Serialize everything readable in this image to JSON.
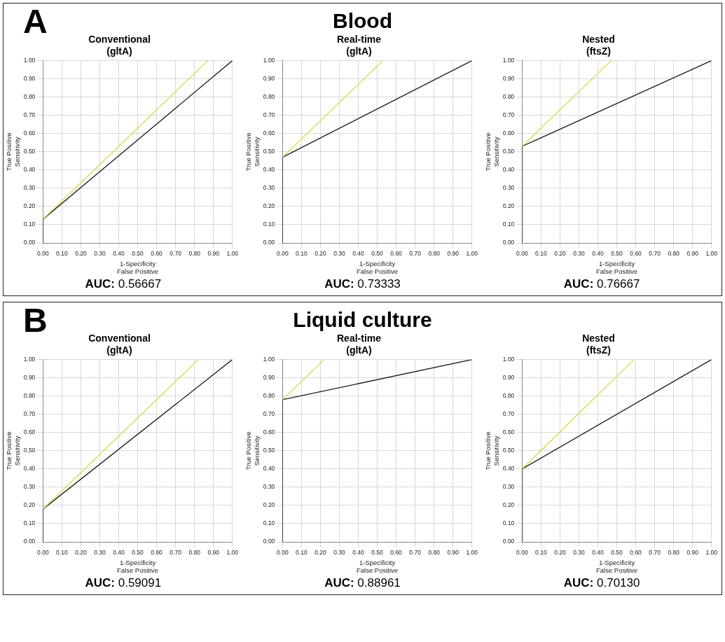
{
  "chart_data": [
    {
      "type": "line",
      "title": "Conventional\n(gltA)",
      "xlabel": "1-Specificity\nFalse Positive",
      "ylabel": "True Positive\nSensitivity",
      "annotations": [
        "A",
        "Blood",
        "AUC: 0.56667"
      ],
      "xlim": [
        0,
        1
      ],
      "ylim": [
        0,
        1
      ],
      "xticks": [
        {
          "value": 0,
          "label": "0.00"
        },
        {
          "value": 0.1,
          "label": "0.10"
        },
        {
          "value": 0.2,
          "label": "0.20"
        },
        {
          "value": 0.3,
          "label": "0.30"
        },
        {
          "value": 0.4,
          "label": "0.40"
        },
        {
          "value": 0.5,
          "label": "0.50"
        },
        {
          "value": 0.6,
          "label": "0.60"
        },
        {
          "value": 0.7,
          "label": "0.70"
        },
        {
          "value": 0.8,
          "label": "0.80"
        },
        {
          "value": 0.9,
          "label": "0.90"
        },
        {
          "value": 1,
          "label": "1.00"
        }
      ],
      "yticks": [
        {
          "value": 0,
          "label": "0.00"
        },
        {
          "value": 0.1,
          "label": "0.10"
        },
        {
          "value": 0.2,
          "label": "0.20"
        },
        {
          "value": 0.3,
          "label": "0.30"
        },
        {
          "value": 0.4,
          "label": "0.40"
        },
        {
          "value": 0.5,
          "label": "0.50"
        },
        {
          "value": 0.6,
          "label": "0.60"
        },
        {
          "value": 0.7,
          "label": "0.70"
        },
        {
          "value": 0.8,
          "label": "0.80"
        },
        {
          "value": 0.9,
          "label": "0.90"
        },
        {
          "value": 1,
          "label": "1.00"
        }
      ],
      "grid": true,
      "series": [
        {
          "color": "#d6d84c",
          "x": [
            0,
            0.87
          ],
          "values": [
            0.13,
            1
          ]
        },
        {
          "color": "#1a1a1a",
          "x": [
            0,
            0,
            1
          ],
          "values": [
            0,
            0.13,
            1
          ]
        }
      ]
    },
    {
      "type": "line",
      "title": "Real-time\n(gltA)",
      "xlabel": "1-Specificity\nFalse Positive",
      "ylabel": "True Positive\nSensitivity",
      "annotations": [
        "AUC: 0.73333"
      ],
      "xlim": [
        0,
        1
      ],
      "ylim": [
        0,
        1
      ],
      "xticks": [
        {
          "value": 0,
          "label": "0.00"
        },
        {
          "value": 0.1,
          "label": "0.10"
        },
        {
          "value": 0.2,
          "label": "0.20"
        },
        {
          "value": 0.3,
          "label": "0.30"
        },
        {
          "value": 0.4,
          "label": "0.40"
        },
        {
          "value": 0.5,
          "label": "0.50"
        },
        {
          "value": 0.6,
          "label": "0.60"
        },
        {
          "value": 0.7,
          "label": "0.70"
        },
        {
          "value": 0.8,
          "label": "0.80"
        },
        {
          "value": 0.9,
          "label": "0.90"
        },
        {
          "value": 1,
          "label": "1.00"
        }
      ],
      "yticks": [
        {
          "value": 0,
          "label": "0.00"
        },
        {
          "value": 0.1,
          "label": "0.10"
        },
        {
          "value": 0.2,
          "label": "0.20"
        },
        {
          "value": 0.3,
          "label": "0.30"
        },
        {
          "value": 0.4,
          "label": "0.40"
        },
        {
          "value": 0.5,
          "label": "0.50"
        },
        {
          "value": 0.6,
          "label": "0.60"
        },
        {
          "value": 0.7,
          "label": "0.70"
        },
        {
          "value": 0.8,
          "label": "0.80"
        },
        {
          "value": 0.9,
          "label": "0.90"
        },
        {
          "value": 1,
          "label": "1.00"
        }
      ],
      "grid": true,
      "series": [
        {
          "color": "#d6d84c",
          "x": [
            0,
            0.53
          ],
          "values": [
            0.47,
            1
          ]
        },
        {
          "color": "#1a1a1a",
          "x": [
            0,
            0,
            1
          ],
          "values": [
            0,
            0.47,
            1
          ]
        }
      ]
    },
    {
      "type": "line",
      "title": "Nested\n(ftsZ)",
      "xlabel": "1-Specificity\nFalse Positive",
      "ylabel": "True Positive\nSensitivity",
      "annotations": [
        "AUC: 0.76667"
      ],
      "xlim": [
        0,
        1
      ],
      "ylim": [
        0,
        1
      ],
      "xticks": [
        {
          "value": 0,
          "label": "0.00"
        },
        {
          "value": 0.1,
          "label": "0.10"
        },
        {
          "value": 0.2,
          "label": "0.20"
        },
        {
          "value": 0.3,
          "label": "0.30"
        },
        {
          "value": 0.4,
          "label": "0.40"
        },
        {
          "value": 0.5,
          "label": "0.50"
        },
        {
          "value": 0.6,
          "label": "0.60"
        },
        {
          "value": 0.7,
          "label": "0.70"
        },
        {
          "value": 0.8,
          "label": "0.80"
        },
        {
          "value": 0.9,
          "label": "0.90"
        },
        {
          "value": 1,
          "label": "1.00"
        }
      ],
      "yticks": [
        {
          "value": 0,
          "label": "0.00"
        },
        {
          "value": 0.1,
          "label": "0.10"
        },
        {
          "value": 0.2,
          "label": "0.20"
        },
        {
          "value": 0.3,
          "label": "0.30"
        },
        {
          "value": 0.4,
          "label": "0.40"
        },
        {
          "value": 0.5,
          "label": "0.50"
        },
        {
          "value": 0.6,
          "label": "0.60"
        },
        {
          "value": 0.7,
          "label": "0.70"
        },
        {
          "value": 0.8,
          "label": "0.80"
        },
        {
          "value": 0.9,
          "label": "0.90"
        },
        {
          "value": 1,
          "label": "1.00"
        }
      ],
      "grid": true,
      "series": [
        {
          "color": "#d6d84c",
          "x": [
            0,
            0.47
          ],
          "values": [
            0.53,
            1
          ]
        },
        {
          "color": "#1a1a1a",
          "x": [
            0,
            0,
            1
          ],
          "values": [
            0,
            0.53,
            1
          ]
        }
      ]
    },
    {
      "type": "line",
      "title": "Conventional\n(gltA)",
      "xlabel": "1-Specificity\nFalse Positive",
      "ylabel": "True Positive\nSensitivity",
      "annotations": [
        "B",
        "Liquid culture",
        "AUC: 0.59091"
      ],
      "xlim": [
        0,
        1
      ],
      "ylim": [
        0,
        1
      ],
      "xticks": [
        {
          "value": 0,
          "label": "0.00"
        },
        {
          "value": 0.1,
          "label": "0.10"
        },
        {
          "value": 0.2,
          "label": "0.20"
        },
        {
          "value": 0.3,
          "label": "0.30"
        },
        {
          "value": 0.4,
          "label": "0.40"
        },
        {
          "value": 0.5,
          "label": "0.50"
        },
        {
          "value": 0.6,
          "label": "0.60"
        },
        {
          "value": 0.7,
          "label": "0.70"
        },
        {
          "value": 0.8,
          "label": "0.80"
        },
        {
          "value": 0.9,
          "label": "0.90"
        },
        {
          "value": 1,
          "label": "1.00"
        }
      ],
      "yticks": [
        {
          "value": 0,
          "label": "0.00"
        },
        {
          "value": 0.1,
          "label": "0.10"
        },
        {
          "value": 0.2,
          "label": "0.20"
        },
        {
          "value": 0.3,
          "label": "0.30"
        },
        {
          "value": 0.4,
          "label": "0.40"
        },
        {
          "value": 0.5,
          "label": "0.50"
        },
        {
          "value": 0.6,
          "label": "0.60"
        },
        {
          "value": 0.7,
          "label": "0.70"
        },
        {
          "value": 0.8,
          "label": "0.80"
        },
        {
          "value": 0.9,
          "label": "0.90"
        },
        {
          "value": 1,
          "label": "1.00"
        }
      ],
      "grid": true,
      "series": [
        {
          "color": "#d6d84c",
          "x": [
            0,
            0.82
          ],
          "values": [
            0.18,
            1
          ]
        },
        {
          "color": "#1a1a1a",
          "x": [
            0,
            0,
            1
          ],
          "values": [
            0,
            0.18,
            1
          ]
        }
      ]
    },
    {
      "type": "line",
      "title": "Real-time\n(gltA)",
      "xlabel": "1-Specificity\nFalse Positive",
      "ylabel": "True Positive\nSensitivity",
      "annotations": [
        "AUC: 0.88961"
      ],
      "xlim": [
        0,
        1
      ],
      "ylim": [
        0,
        1
      ],
      "xticks": [
        {
          "value": 0,
          "label": "0.00"
        },
        {
          "value": 0.1,
          "label": "0.10"
        },
        {
          "value": 0.2,
          "label": "0.20"
        },
        {
          "value": 0.3,
          "label": "0.30"
        },
        {
          "value": 0.4,
          "label": "0.40"
        },
        {
          "value": 0.5,
          "label": "0.50"
        },
        {
          "value": 0.6,
          "label": "0.60"
        },
        {
          "value": 0.7,
          "label": "0.70"
        },
        {
          "value": 0.8,
          "label": "0.80"
        },
        {
          "value": 0.9,
          "label": "0.90"
        },
        {
          "value": 1,
          "label": "1.00"
        }
      ],
      "yticks": [
        {
          "value": 0,
          "label": "0.00"
        },
        {
          "value": 0.1,
          "label": "0.10"
        },
        {
          "value": 0.2,
          "label": "0.20"
        },
        {
          "value": 0.3,
          "label": "0.30"
        },
        {
          "value": 0.4,
          "label": "0.40"
        },
        {
          "value": 0.5,
          "label": "0.50"
        },
        {
          "value": 0.6,
          "label": "0.60"
        },
        {
          "value": 0.7,
          "label": "0.70"
        },
        {
          "value": 0.8,
          "label": "0.80"
        },
        {
          "value": 0.9,
          "label": "0.90"
        },
        {
          "value": 1,
          "label": "1.00"
        }
      ],
      "grid": true,
      "series": [
        {
          "color": "#d6d84c",
          "x": [
            0,
            0.22
          ],
          "values": [
            0.78,
            1
          ]
        },
        {
          "color": "#1a1a1a",
          "x": [
            0,
            0,
            1
          ],
          "values": [
            0,
            0.78,
            1
          ]
        }
      ]
    },
    {
      "type": "line",
      "title": "Nested\n(ftsZ)",
      "xlabel": "1-Specificity\nFalse Positive",
      "ylabel": "True Positive\nSensitivity",
      "annotations": [
        "AUC: 0.70130"
      ],
      "xlim": [
        0,
        1
      ],
      "ylim": [
        0,
        1
      ],
      "xticks": [
        {
          "value": 0,
          "label": "0.00"
        },
        {
          "value": 0.1,
          "label": "0.10"
        },
        {
          "value": 0.2,
          "label": "0.20"
        },
        {
          "value": 0.3,
          "label": "0.30"
        },
        {
          "value": 0.4,
          "label": "0.40"
        },
        {
          "value": 0.5,
          "label": "0.50"
        },
        {
          "value": 0.6,
          "label": "0.60"
        },
        {
          "value": 0.7,
          "label": "0.70"
        },
        {
          "value": 0.8,
          "label": "0.80"
        },
        {
          "value": 0.9,
          "label": "0.90"
        },
        {
          "value": 1,
          "label": "1.00"
        }
      ],
      "yticks": [
        {
          "value": 0,
          "label": "0.00"
        },
        {
          "value": 0.1,
          "label": "0.10"
        },
        {
          "value": 0.2,
          "label": "0.20"
        },
        {
          "value": 0.3,
          "label": "0.30"
        },
        {
          "value": 0.4,
          "label": "0.40"
        },
        {
          "value": 0.5,
          "label": "0.50"
        },
        {
          "value": 0.6,
          "label": "0.60"
        },
        {
          "value": 0.7,
          "label": "0.70"
        },
        {
          "value": 0.8,
          "label": "0.80"
        },
        {
          "value": 0.9,
          "label": "0.90"
        },
        {
          "value": 1,
          "label": "1.00"
        }
      ],
      "grid": true,
      "series": [
        {
          "color": "#d6d84c",
          "x": [
            0,
            0.59
          ],
          "values": [
            0.4,
            1
          ]
        },
        {
          "color": "#1a1a1a",
          "x": [
            0,
            0,
            1
          ],
          "values": [
            0,
            0.4,
            1
          ]
        }
      ]
    }
  ]
}
